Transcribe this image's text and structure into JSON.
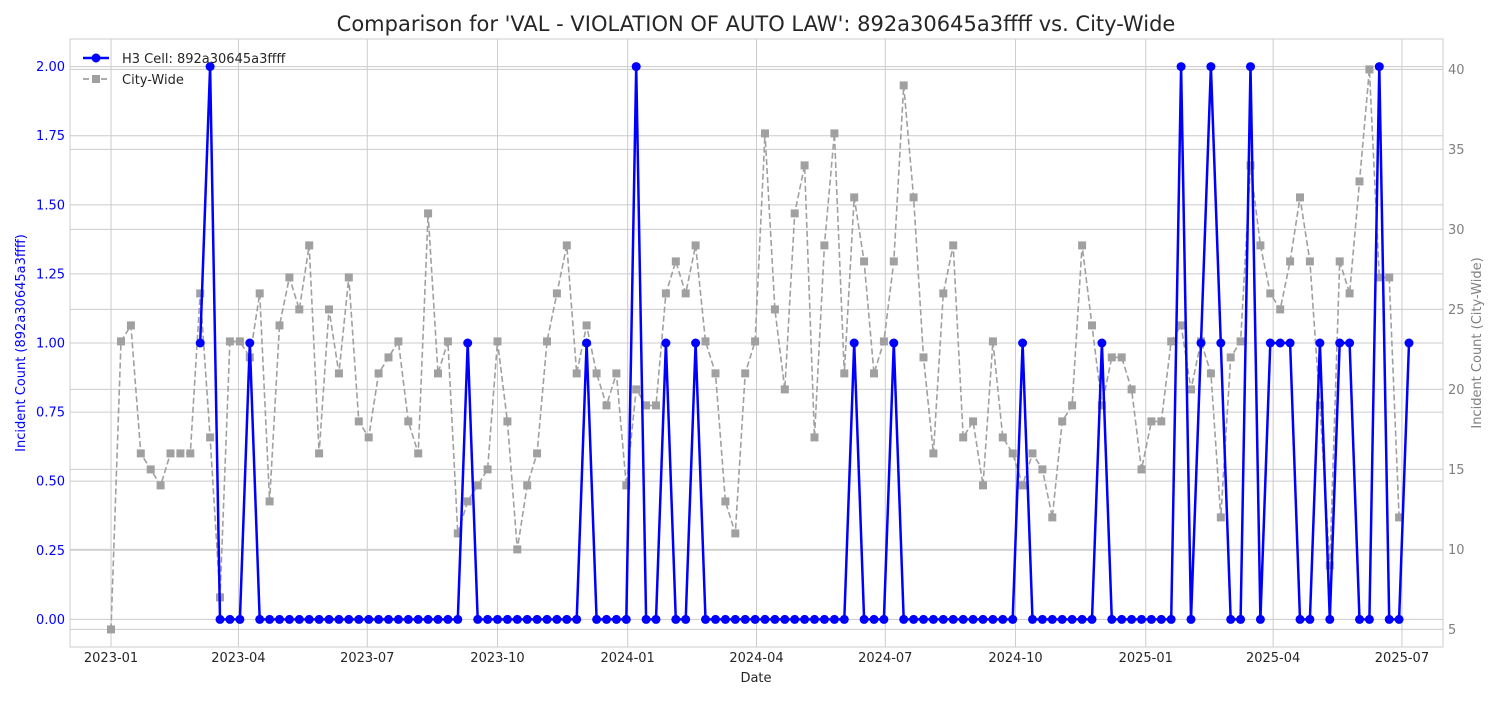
{
  "chart_data": {
    "type": "line",
    "title": "Comparison for 'VAL - VIOLATION OF AUTO LAW': 892a30645a3ffff vs. City-Wide",
    "xlabel": "Date",
    "ylabel_left": "Incident Count (892a30645a3ffff)",
    "ylabel_right": "Incident Count (City-Wide)",
    "x_ticks": [
      "2023-01",
      "2023-04",
      "2023-07",
      "2023-10",
      "2024-01",
      "2024-04",
      "2024-07",
      "2024-10",
      "2025-01",
      "2025-04",
      "2025-07"
    ],
    "y_left_ticks": [
      "0.00",
      "0.25",
      "0.50",
      "0.75",
      "1.00",
      "1.25",
      "1.50",
      "1.75",
      "2.00"
    ],
    "y_right_ticks": [
      "5",
      "10",
      "15",
      "20",
      "25",
      "30",
      "35",
      "40"
    ],
    "ylim_left": [
      -0.1,
      2.1
    ],
    "ylim_right": [
      3.9,
      41.9
    ],
    "xlim": [
      "2022-12-03",
      "2025-07-30"
    ],
    "grid": true,
    "legend_position": "top-left",
    "colors": {
      "cell": "#0000ff",
      "city": "#a0a0a0",
      "left_axis": "#0000ff",
      "right_axis": "#808080"
    },
    "series": [
      {
        "name": "H3 Cell: 892a30645a3ffff",
        "axis": "left",
        "marker": "circle",
        "points": [
          [
            "2023-03-05",
            1
          ],
          [
            "2023-03-12",
            2
          ],
          [
            "2023-03-19",
            0
          ],
          [
            "2023-03-26",
            0
          ],
          [
            "2023-04-02",
            0
          ],
          [
            "2023-04-09",
            1
          ],
          [
            "2023-04-16",
            0
          ],
          [
            "2023-04-23",
            0
          ],
          [
            "2023-04-30",
            0
          ],
          [
            "2023-05-07",
            0
          ],
          [
            "2023-05-14",
            0
          ],
          [
            "2023-05-21",
            0
          ],
          [
            "2023-05-28",
            0
          ],
          [
            "2023-06-04",
            0
          ],
          [
            "2023-06-11",
            0
          ],
          [
            "2023-06-18",
            0
          ],
          [
            "2023-06-25",
            0
          ],
          [
            "2023-07-02",
            0
          ],
          [
            "2023-07-09",
            0
          ],
          [
            "2023-07-16",
            0
          ],
          [
            "2023-07-23",
            0
          ],
          [
            "2023-07-30",
            0
          ],
          [
            "2023-08-06",
            0
          ],
          [
            "2023-08-13",
            0
          ],
          [
            "2023-08-20",
            0
          ],
          [
            "2023-08-27",
            0
          ],
          [
            "2023-09-03",
            0
          ],
          [
            "2023-09-10",
            1
          ],
          [
            "2023-09-17",
            0
          ],
          [
            "2023-09-24",
            0
          ],
          [
            "2023-10-01",
            0
          ],
          [
            "2023-10-08",
            0
          ],
          [
            "2023-10-15",
            0
          ],
          [
            "2023-10-22",
            0
          ],
          [
            "2023-10-29",
            0
          ],
          [
            "2023-11-05",
            0
          ],
          [
            "2023-11-12",
            0
          ],
          [
            "2023-11-19",
            0
          ],
          [
            "2023-11-26",
            0
          ],
          [
            "2023-12-03",
            1
          ],
          [
            "2023-12-10",
            0
          ],
          [
            "2023-12-17",
            0
          ],
          [
            "2023-12-24",
            0
          ],
          [
            "2023-12-31",
            0
          ],
          [
            "2024-01-07",
            2
          ],
          [
            "2024-01-14",
            0
          ],
          [
            "2024-01-21",
            0
          ],
          [
            "2024-01-28",
            1
          ],
          [
            "2024-02-04",
            0
          ],
          [
            "2024-02-11",
            0
          ],
          [
            "2024-02-18",
            1
          ],
          [
            "2024-02-25",
            0
          ],
          [
            "2024-03-03",
            0
          ],
          [
            "2024-03-10",
            0
          ],
          [
            "2024-03-17",
            0
          ],
          [
            "2024-03-24",
            0
          ],
          [
            "2024-03-31",
            0
          ],
          [
            "2024-04-07",
            0
          ],
          [
            "2024-04-14",
            0
          ],
          [
            "2024-04-21",
            0
          ],
          [
            "2024-04-28",
            0
          ],
          [
            "2024-05-05",
            0
          ],
          [
            "2024-05-12",
            0
          ],
          [
            "2024-05-19",
            0
          ],
          [
            "2024-05-26",
            0
          ],
          [
            "2024-06-02",
            0
          ],
          [
            "2024-06-09",
            1
          ],
          [
            "2024-06-16",
            0
          ],
          [
            "2024-06-23",
            0
          ],
          [
            "2024-06-30",
            0
          ],
          [
            "2024-07-07",
            1
          ],
          [
            "2024-07-14",
            0
          ],
          [
            "2024-07-21",
            0
          ],
          [
            "2024-07-28",
            0
          ],
          [
            "2024-08-04",
            0
          ],
          [
            "2024-08-11",
            0
          ],
          [
            "2024-08-18",
            0
          ],
          [
            "2024-08-25",
            0
          ],
          [
            "2024-09-01",
            0
          ],
          [
            "2024-09-08",
            0
          ],
          [
            "2024-09-15",
            0
          ],
          [
            "2024-09-22",
            0
          ],
          [
            "2024-09-29",
            0
          ],
          [
            "2024-10-06",
            1
          ],
          [
            "2024-10-13",
            0
          ],
          [
            "2024-10-20",
            0
          ],
          [
            "2024-10-27",
            0
          ],
          [
            "2024-11-03",
            0
          ],
          [
            "2024-11-10",
            0
          ],
          [
            "2024-11-17",
            0
          ],
          [
            "2024-11-24",
            0
          ],
          [
            "2024-12-01",
            1
          ],
          [
            "2024-12-08",
            0
          ],
          [
            "2024-12-15",
            0
          ],
          [
            "2024-12-22",
            0
          ],
          [
            "2024-12-29",
            0
          ],
          [
            "2025-01-05",
            0
          ],
          [
            "2025-01-12",
            0
          ],
          [
            "2025-01-19",
            0
          ],
          [
            "2025-01-26",
            2
          ],
          [
            "2025-02-02",
            0
          ],
          [
            "2025-02-09",
            1
          ],
          [
            "2025-02-16",
            2
          ],
          [
            "2025-02-23",
            1
          ],
          [
            "2025-03-02",
            0
          ],
          [
            "2025-03-09",
            0
          ],
          [
            "2025-03-16",
            2
          ],
          [
            "2025-03-23",
            0
          ],
          [
            "2025-03-30",
            1
          ],
          [
            "2025-04-06",
            1
          ],
          [
            "2025-04-13",
            1
          ],
          [
            "2025-04-20",
            0
          ],
          [
            "2025-04-27",
            0
          ],
          [
            "2025-05-04",
            1
          ],
          [
            "2025-05-11",
            0
          ],
          [
            "2025-05-18",
            1
          ],
          [
            "2025-05-25",
            1
          ],
          [
            "2025-06-01",
            0
          ],
          [
            "2025-06-08",
            0
          ],
          [
            "2025-06-15",
            2
          ],
          [
            "2025-06-22",
            0
          ],
          [
            "2025-06-29",
            0
          ],
          [
            "2025-07-06",
            1
          ]
        ]
      },
      {
        "name": "City-Wide",
        "axis": "right",
        "marker": "square",
        "dashed": true,
        "points": [
          [
            "2023-01-01",
            5
          ],
          [
            "2023-01-08",
            23
          ],
          [
            "2023-01-15",
            24
          ],
          [
            "2023-01-22",
            16
          ],
          [
            "2023-01-29",
            15
          ],
          [
            "2023-02-05",
            14
          ],
          [
            "2023-02-12",
            16
          ],
          [
            "2023-02-19",
            16
          ],
          [
            "2023-02-26",
            16
          ],
          [
            "2023-03-05",
            26
          ],
          [
            "2023-03-12",
            17
          ],
          [
            "2023-03-19",
            7
          ],
          [
            "2023-03-26",
            23
          ],
          [
            "2023-04-02",
            23
          ],
          [
            "2023-04-09",
            22
          ],
          [
            "2023-04-16",
            26
          ],
          [
            "2023-04-23",
            13
          ],
          [
            "2023-04-30",
            24
          ],
          [
            "2023-05-07",
            27
          ],
          [
            "2023-05-14",
            25
          ],
          [
            "2023-05-21",
            29
          ],
          [
            "2023-05-28",
            16
          ],
          [
            "2023-06-04",
            25
          ],
          [
            "2023-06-11",
            21
          ],
          [
            "2023-06-18",
            27
          ],
          [
            "2023-06-25",
            18
          ],
          [
            "2023-07-02",
            17
          ],
          [
            "2023-07-09",
            21
          ],
          [
            "2023-07-16",
            22
          ],
          [
            "2023-07-23",
            23
          ],
          [
            "2023-07-30",
            18
          ],
          [
            "2023-08-06",
            16
          ],
          [
            "2023-08-13",
            31
          ],
          [
            "2023-08-20",
            21
          ],
          [
            "2023-08-27",
            23
          ],
          [
            "2023-09-03",
            11
          ],
          [
            "2023-09-10",
            13
          ],
          [
            "2023-09-17",
            14
          ],
          [
            "2023-09-24",
            15
          ],
          [
            "2023-10-01",
            23
          ],
          [
            "2023-10-08",
            18
          ],
          [
            "2023-10-15",
            10
          ],
          [
            "2023-10-22",
            14
          ],
          [
            "2023-10-29",
            16
          ],
          [
            "2023-11-05",
            23
          ],
          [
            "2023-11-12",
            26
          ],
          [
            "2023-11-19",
            29
          ],
          [
            "2023-11-26",
            21
          ],
          [
            "2023-12-03",
            24
          ],
          [
            "2023-12-10",
            21
          ],
          [
            "2023-12-17",
            19
          ],
          [
            "2023-12-24",
            21
          ],
          [
            "2023-12-31",
            14
          ],
          [
            "2024-01-07",
            20
          ],
          [
            "2024-01-14",
            19
          ],
          [
            "2024-01-21",
            19
          ],
          [
            "2024-01-28",
            26
          ],
          [
            "2024-02-04",
            28
          ],
          [
            "2024-02-11",
            26
          ],
          [
            "2024-02-18",
            29
          ],
          [
            "2024-02-25",
            23
          ],
          [
            "2024-03-03",
            21
          ],
          [
            "2024-03-10",
            13
          ],
          [
            "2024-03-17",
            11
          ],
          [
            "2024-03-24",
            21
          ],
          [
            "2024-03-31",
            23
          ],
          [
            "2024-04-07",
            36
          ],
          [
            "2024-04-14",
            25
          ],
          [
            "2024-04-21",
            20
          ],
          [
            "2024-04-28",
            31
          ],
          [
            "2024-05-05",
            34
          ],
          [
            "2024-05-12",
            17
          ],
          [
            "2024-05-19",
            29
          ],
          [
            "2024-05-26",
            36
          ],
          [
            "2024-06-02",
            21
          ],
          [
            "2024-06-09",
            32
          ],
          [
            "2024-06-16",
            28
          ],
          [
            "2024-06-23",
            21
          ],
          [
            "2024-06-30",
            23
          ],
          [
            "2024-07-07",
            28
          ],
          [
            "2024-07-14",
            39
          ],
          [
            "2024-07-21",
            32
          ],
          [
            "2024-07-28",
            22
          ],
          [
            "2024-08-04",
            16
          ],
          [
            "2024-08-11",
            26
          ],
          [
            "2024-08-18",
            29
          ],
          [
            "2024-08-25",
            17
          ],
          [
            "2024-09-01",
            18
          ],
          [
            "2024-09-08",
            14
          ],
          [
            "2024-09-15",
            23
          ],
          [
            "2024-09-22",
            17
          ],
          [
            "2024-09-29",
            16
          ],
          [
            "2024-10-06",
            14
          ],
          [
            "2024-10-13",
            16
          ],
          [
            "2024-10-20",
            15
          ],
          [
            "2024-10-27",
            12
          ],
          [
            "2024-11-03",
            18
          ],
          [
            "2024-11-10",
            19
          ],
          [
            "2024-11-17",
            29
          ],
          [
            "2024-11-24",
            24
          ],
          [
            "2024-12-01",
            19
          ],
          [
            "2024-12-08",
            22
          ],
          [
            "2024-12-15",
            22
          ],
          [
            "2024-12-22",
            20
          ],
          [
            "2024-12-29",
            15
          ],
          [
            "2025-01-05",
            18
          ],
          [
            "2025-01-12",
            18
          ],
          [
            "2025-01-19",
            23
          ],
          [
            "2025-01-26",
            24
          ],
          [
            "2025-02-02",
            20
          ],
          [
            "2025-02-09",
            23
          ],
          [
            "2025-02-16",
            21
          ],
          [
            "2025-02-23",
            12
          ],
          [
            "2025-03-02",
            22
          ],
          [
            "2025-03-09",
            23
          ],
          [
            "2025-03-16",
            34
          ],
          [
            "2025-03-23",
            29
          ],
          [
            "2025-03-30",
            26
          ],
          [
            "2025-04-06",
            25
          ],
          [
            "2025-04-13",
            28
          ],
          [
            "2025-04-20",
            32
          ],
          [
            "2025-04-27",
            28
          ],
          [
            "2025-05-04",
            19
          ],
          [
            "2025-05-11",
            9
          ],
          [
            "2025-05-18",
            28
          ],
          [
            "2025-05-25",
            26
          ],
          [
            "2025-06-01",
            33
          ],
          [
            "2025-06-08",
            40
          ],
          [
            "2025-06-15",
            27
          ],
          [
            "2025-06-22",
            27
          ],
          [
            "2025-06-29",
            12
          ]
        ]
      }
    ]
  }
}
